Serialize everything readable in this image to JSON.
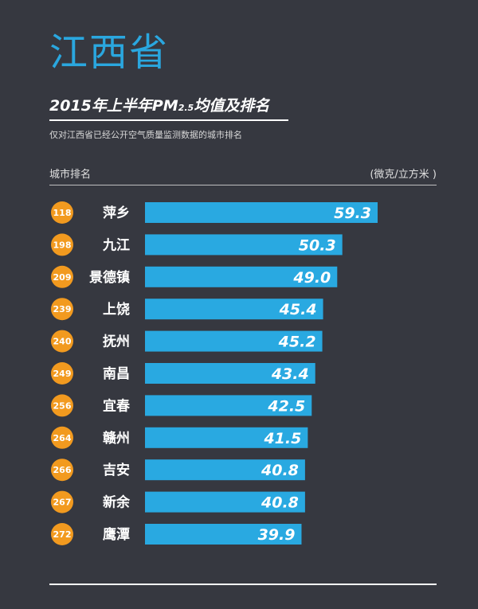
{
  "header": {
    "title": "江西省",
    "subtitle_main": "2015年上半年PM",
    "subtitle_sub": "2.5",
    "subtitle_tail": "均值及排名",
    "note": "仅对江西省已经公开空气质量监测数据的城市排名",
    "col_left": "城市排名",
    "col_right": "(微克/立方米 )"
  },
  "colors": {
    "background": "#363840",
    "title": "#2aa7df",
    "bar": "#29a9e1",
    "rank_badge": "#f29a1f"
  },
  "chart_data": {
    "type": "bar",
    "orientation": "horizontal",
    "title": "2015年上半年PM2.5均值及排名",
    "ylabel": "城市排名",
    "unit": "(微克/立方米 )",
    "categories": [
      "萍乡",
      "九江",
      "景德镇",
      "上饶",
      "抚州",
      "南昌",
      "宜春",
      "赣州",
      "吉安",
      "新余",
      "鹰潭"
    ],
    "ranks": [
      "118",
      "198",
      "209",
      "239",
      "240",
      "249",
      "256",
      "264",
      "266",
      "267",
      "272"
    ],
    "values": [
      59.3,
      50.3,
      49.0,
      45.4,
      45.2,
      43.4,
      42.5,
      41.5,
      40.8,
      40.8,
      39.9
    ],
    "value_labels": [
      "59.3",
      "50.3",
      "49.0",
      "45.4",
      "45.2",
      "43.4",
      "42.5",
      "41.5",
      "40.8",
      "40.8",
      "39.9"
    ],
    "grid": false,
    "legend": "none"
  }
}
